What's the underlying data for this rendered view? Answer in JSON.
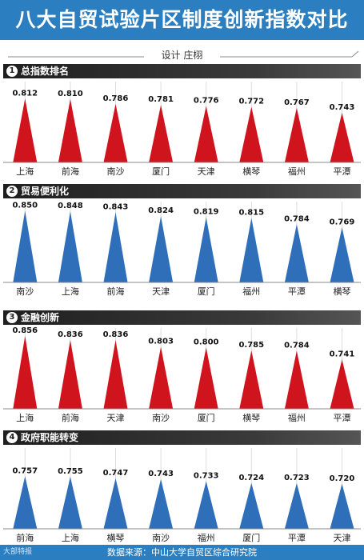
{
  "header": {
    "title": "八大自贸试验片区制度创新指数对比",
    "credit": "设计  庄栩"
  },
  "colors": {
    "header_bg": "#2b7fc1",
    "red": "#d0141e",
    "blue": "#2f6fba"
  },
  "footer": {
    "source": "数据来源：中山大学自贸区综合研究院",
    "logo": "大部特报"
  },
  "chart_data": [
    {
      "type": "bar",
      "number": "1",
      "title": "总指数排名",
      "color": "red",
      "categories": [
        "上海",
        "前海",
        "南沙",
        "厦门",
        "天津",
        "横琴",
        "福州",
        "平潭"
      ],
      "values": [
        0.812,
        0.81,
        0.786,
        0.781,
        0.776,
        0.772,
        0.767,
        0.743
      ],
      "labels": [
        "0.812",
        "0.810",
        "0.786",
        "0.781",
        "0.776",
        "0.772",
        "0.767",
        "0.743"
      ]
    },
    {
      "type": "bar",
      "number": "2",
      "title": "贸易便利化",
      "color": "blue",
      "categories": [
        "南沙",
        "上海",
        "前海",
        "天津",
        "厦门",
        "福州",
        "平潭",
        "横琴"
      ],
      "values": [
        0.85,
        0.848,
        0.843,
        0.824,
        0.819,
        0.815,
        0.784,
        0.769
      ],
      "labels": [
        "0.850",
        "0.848",
        "0.843",
        "0.824",
        "0.819",
        "0.815",
        "0.784",
        "0.769"
      ]
    },
    {
      "type": "bar",
      "number": "3",
      "title": "金融创新",
      "color": "red",
      "categories": [
        "上海",
        "前海",
        "天津",
        "南沙",
        "厦门",
        "横琴",
        "福州",
        "平潭"
      ],
      "values": [
        0.856,
        0.836,
        0.836,
        0.803,
        0.8,
        0.785,
        0.784,
        0.741
      ],
      "labels": [
        "0.856",
        "0.836",
        "0.836",
        "0.803",
        "0.800",
        "0.785",
        "0.784",
        "0.741"
      ]
    },
    {
      "type": "bar",
      "number": "4",
      "title": "政府职能转变",
      "color": "blue",
      "categories": [
        "前海",
        "上海",
        "横琴",
        "南沙",
        "福州",
        "厦门",
        "平潭",
        "天津"
      ],
      "values": [
        0.757,
        0.755,
        0.747,
        0.743,
        0.733,
        0.724,
        0.723,
        0.72
      ],
      "labels": [
        "0.757",
        "0.755",
        "0.747",
        "0.743",
        "0.733",
        "0.724",
        "0.723",
        "0.720"
      ]
    }
  ]
}
